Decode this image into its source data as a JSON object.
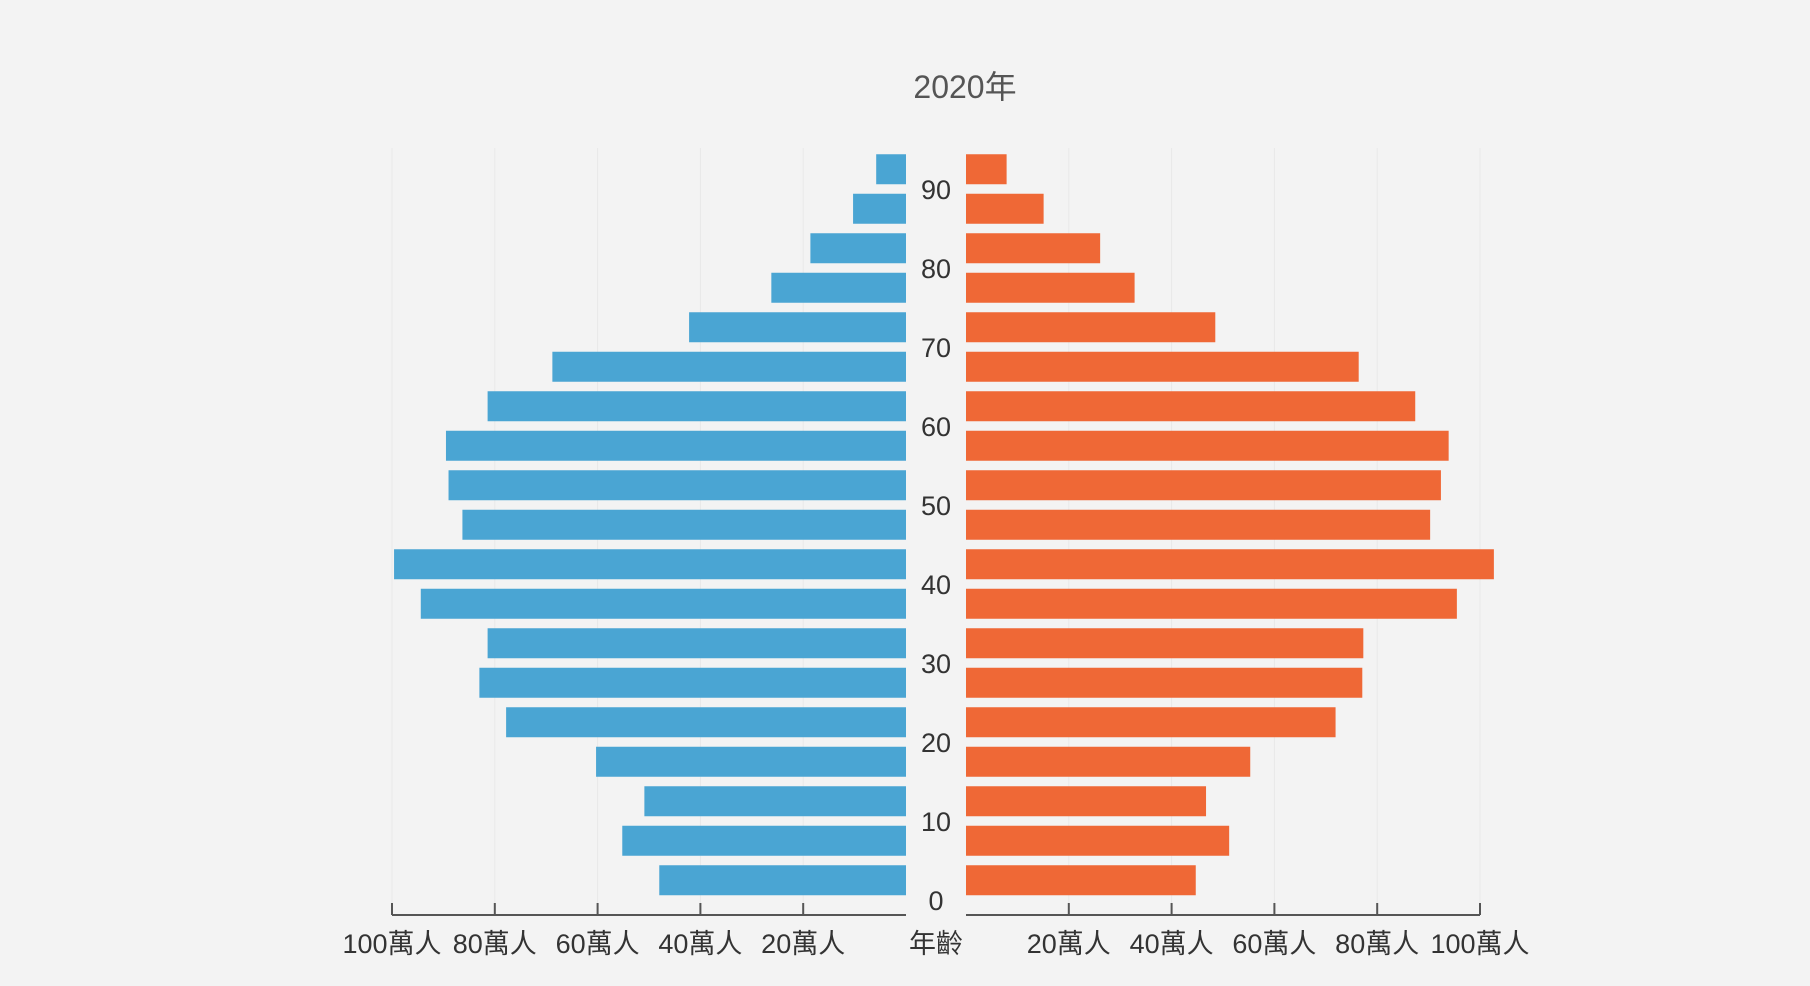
{
  "chart_data": {
    "type": "bar",
    "orientation": "horizontal-population-pyramid",
    "title": "2020年",
    "center_axis_label": "年齡",
    "age_groups": [
      0,
      5,
      10,
      15,
      20,
      25,
      30,
      35,
      40,
      45,
      50,
      55,
      60,
      65,
      70,
      75,
      80,
      85,
      90
    ],
    "age_tick_labels": [
      "0",
      "10",
      "20",
      "30",
      "40",
      "50",
      "60",
      "70",
      "80",
      "90"
    ],
    "x_tick_labels_left": [
      "100萬人",
      "80萬人",
      "60萬人",
      "40萬人",
      "20萬人"
    ],
    "x_tick_labels_right": [
      "20萬人",
      "40萬人",
      "60萬人",
      "80萬人",
      "100萬人"
    ],
    "xlim": [
      0,
      100
    ],
    "unit": "萬人",
    "grid": true,
    "series": [
      {
        "side": "left",
        "color": "#4aa5d3",
        "values": [
          48.0,
          55.2,
          50.9,
          60.3,
          77.8,
          83.0,
          81.4,
          94.4,
          99.6,
          86.3,
          89.0,
          89.5,
          81.4,
          68.8,
          42.2,
          26.2,
          18.6,
          10.3,
          5.8
        ]
      },
      {
        "side": "right",
        "color": "#ef6836",
        "values": [
          44.7,
          51.2,
          46.7,
          55.3,
          71.9,
          77.1,
          77.3,
          95.5,
          102.7,
          90.3,
          92.4,
          93.9,
          87.4,
          76.4,
          48.5,
          32.8,
          26.1,
          15.1,
          7.9
        ]
      }
    ]
  }
}
